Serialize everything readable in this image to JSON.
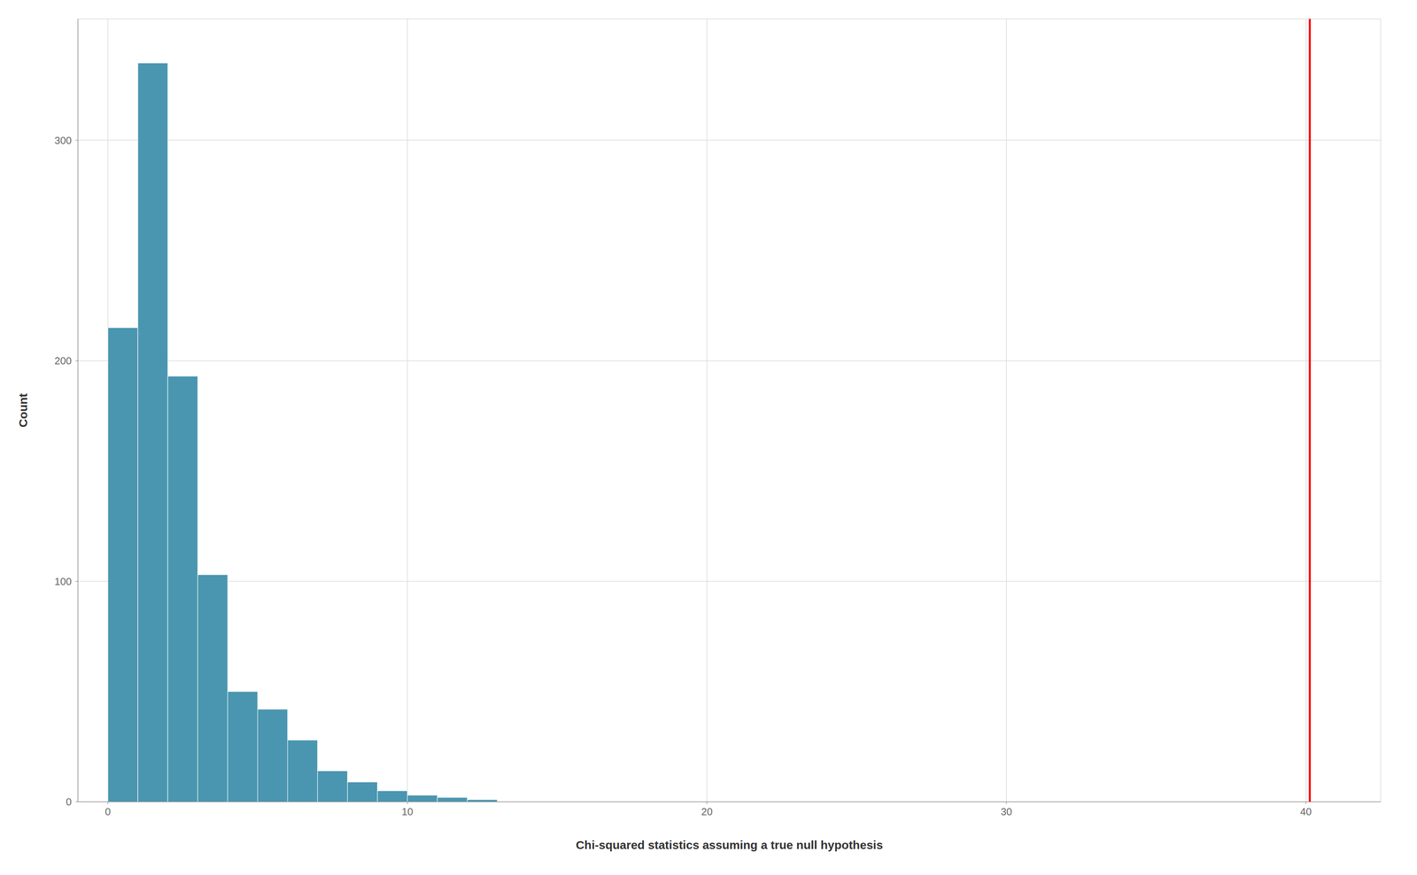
{
  "chart_data": {
    "type": "histogram",
    "xlabel": "Chi-squared statistics assuming a true null hypothesis",
    "ylabel": "Count",
    "bins": [
      0,
      1,
      2,
      3,
      4,
      5,
      6,
      7,
      8,
      9,
      10,
      11,
      12,
      13
    ],
    "values": [
      215,
      335,
      193,
      103,
      50,
      42,
      28,
      14,
      9,
      5,
      3,
      2,
      1
    ],
    "color": "#4a96b0",
    "vlines": [
      {
        "x": 40.13,
        "color": "#ff0000"
      }
    ],
    "xlim": [
      -1.0,
      42.5
    ],
    "ylim": [
      0,
      355
    ],
    "xticks": [
      0,
      10,
      20,
      30,
      40
    ],
    "yticks": [
      0,
      100,
      200,
      300
    ],
    "grid": true
  }
}
